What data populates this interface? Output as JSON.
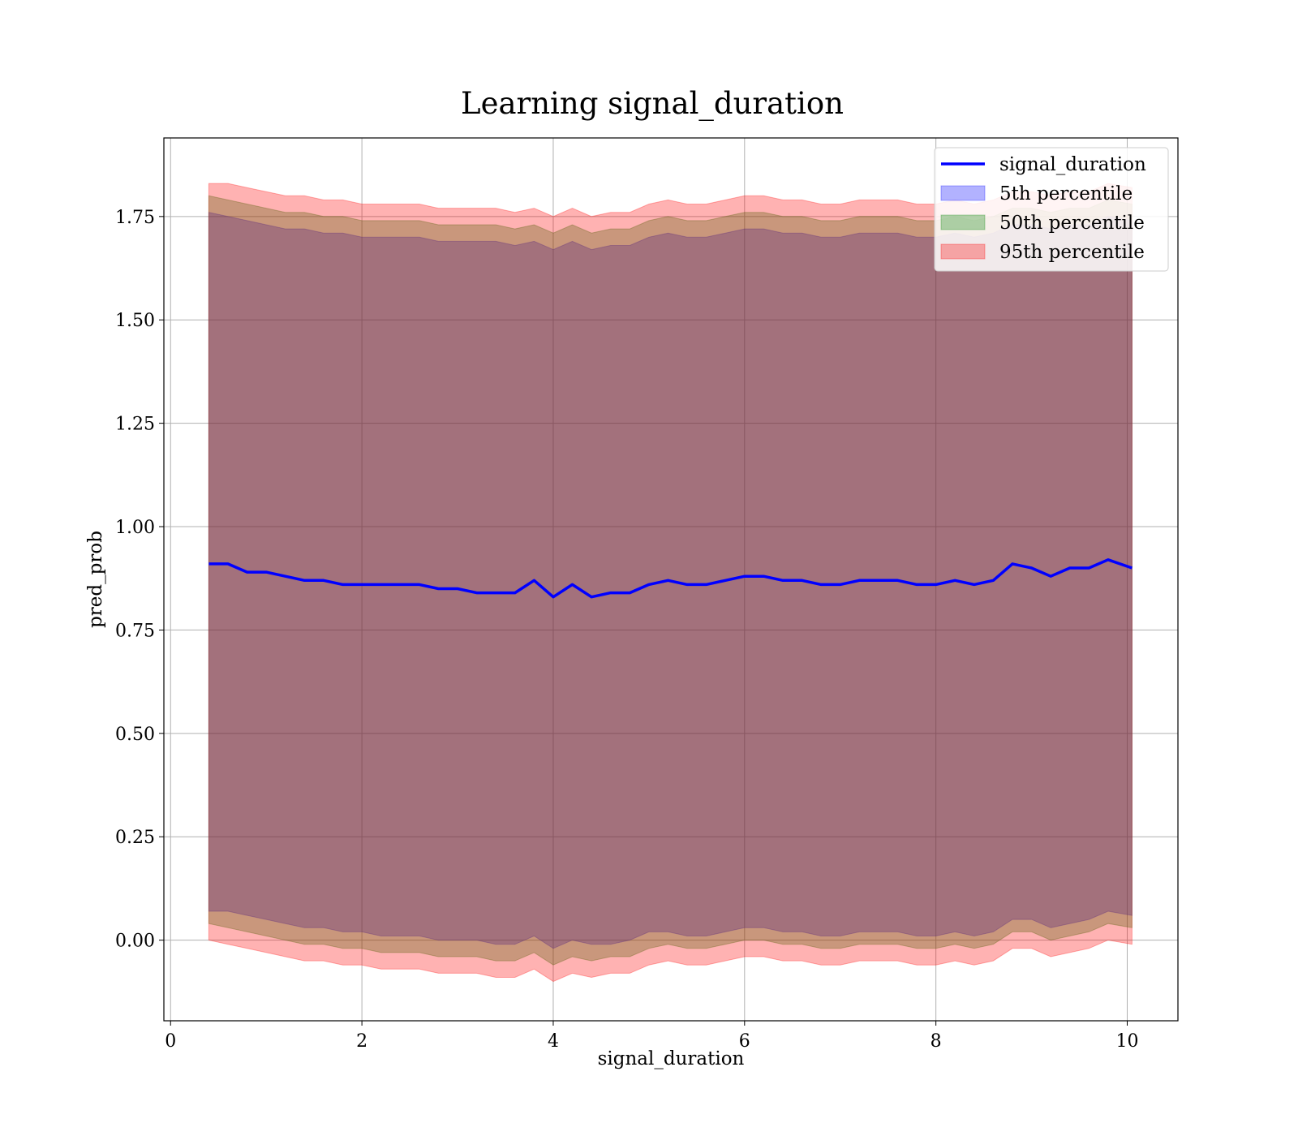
{
  "chart_data": {
    "type": "area",
    "title": "Learning signal_duration",
    "xlabel": "signal_duration",
    "ylabel": "pred_prob",
    "xlim": [
      -0.07,
      10.53
    ],
    "ylim": [
      -0.195,
      1.94
    ],
    "x_ticks": [
      0,
      2,
      4,
      6,
      8,
      10
    ],
    "y_ticks": [
      0.0,
      0.25,
      0.5,
      0.75,
      1.0,
      1.25,
      1.5,
      1.75
    ],
    "x_tick_labels": [
      "0",
      "2",
      "4",
      "6",
      "8",
      "10"
    ],
    "y_tick_labels": [
      "0.00",
      "0.25",
      "0.50",
      "0.75",
      "1.00",
      "1.25",
      "1.50",
      "1.75"
    ],
    "grid": true,
    "legend_position": "top-right",
    "x": [
      0.4,
      0.6,
      0.8,
      1.0,
      1.2,
      1.4,
      1.6,
      1.8,
      2.0,
      2.2,
      2.4,
      2.6,
      2.8,
      3.0,
      3.2,
      3.4,
      3.6,
      3.8,
      4.0,
      4.2,
      4.4,
      4.6,
      4.8,
      5.0,
      5.2,
      5.4,
      5.6,
      5.8,
      6.0,
      6.2,
      6.4,
      6.6,
      6.8,
      7.0,
      7.2,
      7.4,
      7.6,
      7.8,
      8.0,
      8.2,
      8.4,
      8.6,
      8.8,
      9.0,
      9.2,
      9.4,
      9.6,
      9.8,
      10.05
    ],
    "series": [
      {
        "name": "signal_duration",
        "kind": "line",
        "color": "#0000ff",
        "values": [
          0.91,
          0.91,
          0.89,
          0.89,
          0.88,
          0.87,
          0.87,
          0.86,
          0.86,
          0.86,
          0.86,
          0.86,
          0.85,
          0.85,
          0.84,
          0.84,
          0.84,
          0.87,
          0.83,
          0.86,
          0.83,
          0.84,
          0.84,
          0.86,
          0.87,
          0.86,
          0.86,
          0.87,
          0.88,
          0.88,
          0.87,
          0.87,
          0.86,
          0.86,
          0.87,
          0.87,
          0.87,
          0.86,
          0.86,
          0.87,
          0.86,
          0.87,
          0.91,
          0.9,
          0.88,
          0.9,
          0.9,
          0.92,
          0.9
        ]
      },
      {
        "name": "5th percentile",
        "kind": "band",
        "color": "#0000ff",
        "lower": [
          0.07,
          0.07,
          0.06,
          0.05,
          0.04,
          0.03,
          0.03,
          0.02,
          0.02,
          0.01,
          0.01,
          0.01,
          0.0,
          0.0,
          0.0,
          -0.01,
          -0.01,
          0.01,
          -0.02,
          0.0,
          -0.01,
          -0.01,
          0.0,
          0.02,
          0.02,
          0.01,
          0.01,
          0.02,
          0.03,
          0.03,
          0.02,
          0.02,
          0.01,
          0.01,
          0.02,
          0.02,
          0.02,
          0.01,
          0.01,
          0.02,
          0.01,
          0.02,
          0.05,
          0.05,
          0.03,
          0.04,
          0.05,
          0.07,
          0.06
        ],
        "upper": [
          1.76,
          1.75,
          1.74,
          1.73,
          1.72,
          1.72,
          1.71,
          1.71,
          1.7,
          1.7,
          1.7,
          1.7,
          1.69,
          1.69,
          1.69,
          1.69,
          1.68,
          1.69,
          1.67,
          1.69,
          1.67,
          1.68,
          1.68,
          1.7,
          1.71,
          1.7,
          1.7,
          1.71,
          1.72,
          1.72,
          1.71,
          1.71,
          1.7,
          1.7,
          1.71,
          1.71,
          1.71,
          1.7,
          1.7,
          1.71,
          1.7,
          1.71,
          1.73,
          1.73,
          1.72,
          1.73,
          1.73,
          1.75,
          1.74
        ]
      },
      {
        "name": "50th percentile",
        "kind": "band",
        "color": "#008000",
        "lower": [
          0.04,
          0.03,
          0.02,
          0.01,
          0.0,
          -0.01,
          -0.01,
          -0.02,
          -0.02,
          -0.03,
          -0.03,
          -0.03,
          -0.04,
          -0.04,
          -0.04,
          -0.05,
          -0.05,
          -0.03,
          -0.06,
          -0.04,
          -0.05,
          -0.04,
          -0.04,
          -0.02,
          -0.01,
          -0.02,
          -0.02,
          -0.01,
          0.0,
          0.0,
          -0.01,
          -0.01,
          -0.02,
          -0.02,
          -0.01,
          -0.01,
          -0.01,
          -0.02,
          -0.02,
          -0.01,
          -0.02,
          -0.01,
          0.02,
          0.02,
          0.0,
          0.01,
          0.02,
          0.04,
          0.03
        ],
        "upper": [
          1.8,
          1.79,
          1.78,
          1.77,
          1.76,
          1.76,
          1.75,
          1.75,
          1.74,
          1.74,
          1.74,
          1.74,
          1.73,
          1.73,
          1.73,
          1.73,
          1.72,
          1.73,
          1.71,
          1.73,
          1.71,
          1.72,
          1.72,
          1.74,
          1.75,
          1.74,
          1.74,
          1.75,
          1.76,
          1.76,
          1.75,
          1.75,
          1.74,
          1.74,
          1.75,
          1.75,
          1.75,
          1.74,
          1.74,
          1.75,
          1.74,
          1.75,
          1.77,
          1.77,
          1.76,
          1.77,
          1.77,
          1.79,
          1.78
        ]
      },
      {
        "name": "95th percentile",
        "kind": "band",
        "color": "#ff0000",
        "lower": [
          0.0,
          -0.01,
          -0.02,
          -0.03,
          -0.04,
          -0.05,
          -0.05,
          -0.06,
          -0.06,
          -0.07,
          -0.07,
          -0.07,
          -0.08,
          -0.08,
          -0.08,
          -0.09,
          -0.09,
          -0.07,
          -0.1,
          -0.08,
          -0.09,
          -0.08,
          -0.08,
          -0.06,
          -0.05,
          -0.06,
          -0.06,
          -0.05,
          -0.04,
          -0.04,
          -0.05,
          -0.05,
          -0.06,
          -0.06,
          -0.05,
          -0.05,
          -0.05,
          -0.06,
          -0.06,
          -0.05,
          -0.06,
          -0.05,
          -0.02,
          -0.02,
          -0.04,
          -0.03,
          -0.02,
          0.0,
          -0.01
        ],
        "upper": [
          1.83,
          1.83,
          1.82,
          1.81,
          1.8,
          1.8,
          1.79,
          1.79,
          1.78,
          1.78,
          1.78,
          1.78,
          1.77,
          1.77,
          1.77,
          1.77,
          1.76,
          1.77,
          1.75,
          1.77,
          1.75,
          1.76,
          1.76,
          1.78,
          1.79,
          1.78,
          1.78,
          1.79,
          1.8,
          1.8,
          1.79,
          1.79,
          1.78,
          1.78,
          1.79,
          1.79,
          1.79,
          1.78,
          1.78,
          1.79,
          1.78,
          1.79,
          1.81,
          1.81,
          1.8,
          1.81,
          1.81,
          1.83,
          1.82
        ]
      }
    ]
  }
}
